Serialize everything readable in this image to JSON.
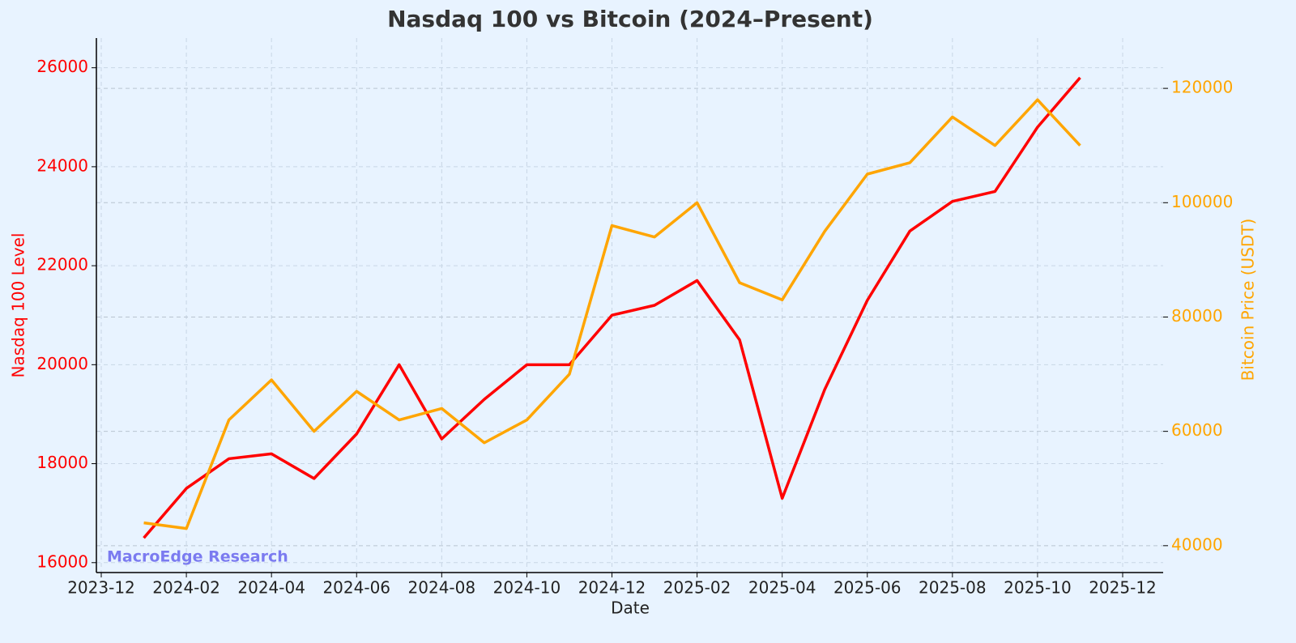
{
  "chart_data": {
    "type": "line",
    "title": "Nasdaq 100 vs Bitcoin (2024–Present)",
    "x_label": "Date",
    "y_label": "Nasdaq 100 Level",
    "y2_label": "Bitcoin Price (USDT)",
    "annotation": "MacroEdge Research",
    "x": [
      "2024-01",
      "2024-02",
      "2024-03",
      "2024-04",
      "2024-05",
      "2024-06",
      "2024-07",
      "2024-08",
      "2024-09",
      "2024-10",
      "2024-11",
      "2024-12",
      "2025-01",
      "2025-02",
      "2025-03",
      "2025-04",
      "2025-05",
      "2025-06",
      "2025-07",
      "2025-08",
      "2025-09",
      "2025-10",
      "2025-11"
    ],
    "series": [
      {
        "name": "Nasdaq 100",
        "color": "#ff0000",
        "values": [
          16500,
          17500,
          18100,
          18200,
          17700,
          18600,
          20000,
          18500,
          19300,
          20000,
          20000,
          21000,
          21200,
          21700,
          20500,
          17300,
          19500,
          21300,
          22700,
          23300,
          23500,
          24800,
          25800
        ]
      },
      {
        "name": "Bitcoin",
        "color": "#ffa500",
        "axis": "y2",
        "values": [
          44000,
          43000,
          62000,
          69000,
          60000,
          67000,
          62000,
          64000,
          58000,
          62000,
          70000,
          96000,
          94000,
          100000,
          86000,
          83000,
          95000,
          105000,
          107000,
          115000,
          110000,
          118000,
          110000
        ]
      }
    ],
    "xlim": [
      "2023-12",
      "2025-12"
    ],
    "xticks": [
      "2023-12",
      "2024-02",
      "2024-04",
      "2024-06",
      "2024-08",
      "2024-10",
      "2024-12",
      "2025-02",
      "2025-04",
      "2025-06",
      "2025-08",
      "2025-10",
      "2025-12"
    ],
    "ylim": [
      15800,
      26600
    ],
    "yticks": [
      16000,
      18000,
      20000,
      22000,
      24000,
      26000
    ],
    "y2lim": [
      35300,
      128800
    ],
    "y2ticks": [
      40000,
      60000,
      80000,
      100000,
      120000
    ],
    "grid": true
  }
}
